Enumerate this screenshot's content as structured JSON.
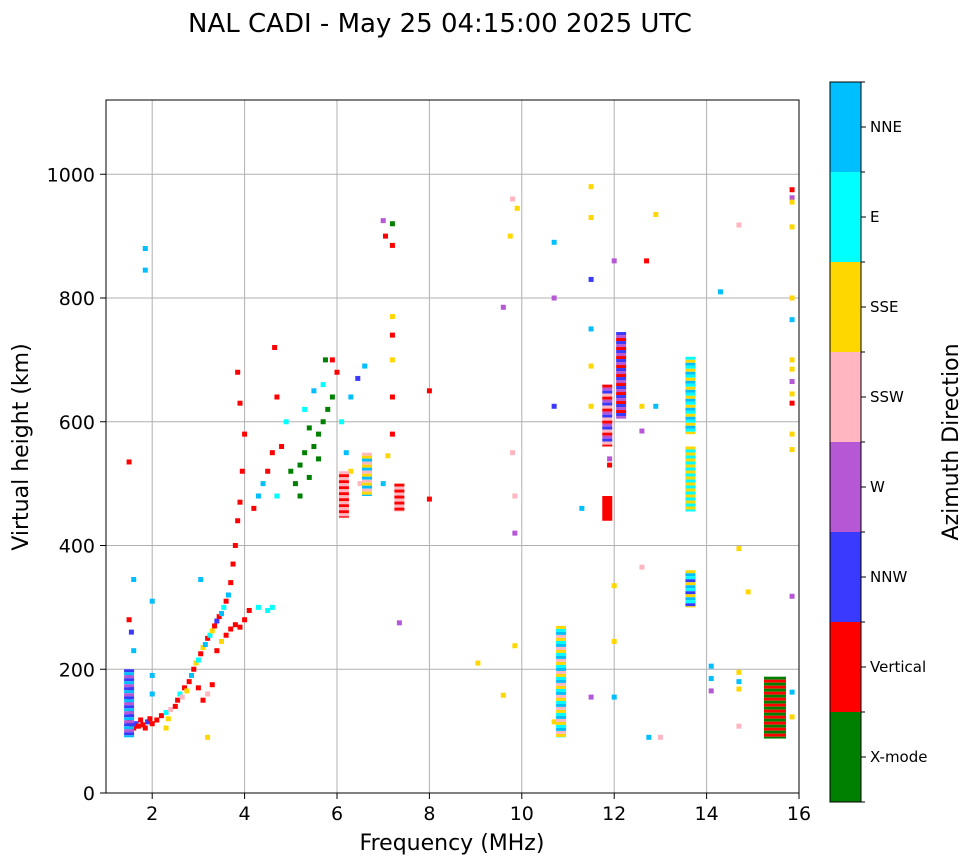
{
  "chart_data": {
    "type": "scatter",
    "title": "NAL CADI - May 25 04:15:00 2025 UTC",
    "xlabel": "Frequency (MHz)",
    "ylabel": "Virtual height (km)",
    "xlim": [
      1,
      16
    ],
    "ylim": [
      0,
      1120
    ],
    "xticks": [
      2,
      4,
      6,
      8,
      10,
      12,
      14,
      16
    ],
    "yticks": [
      0,
      200,
      400,
      600,
      800,
      1000
    ],
    "grid": true,
    "colorbar": {
      "label": "Azimuth Direction",
      "categories": [
        {
          "name": "X-mode",
          "color": "#008000"
        },
        {
          "name": "Vertical",
          "color": "#ff0000"
        },
        {
          "name": "NNW",
          "color": "#3a3aff"
        },
        {
          "name": "W",
          "color": "#b657d6"
        },
        {
          "name": "SSW",
          "color": "#ffb6c1"
        },
        {
          "name": "SSE",
          "color": "#ffd700"
        },
        {
          "name": "E",
          "color": "#00ffff"
        },
        {
          "name": "NNE",
          "color": "#00bfff"
        }
      ]
    },
    "points": [
      [
        1.5,
        115,
        "Vertical"
      ],
      [
        1.55,
        110,
        "Vertical"
      ],
      [
        1.6,
        105,
        "Vertical"
      ],
      [
        1.65,
        112,
        "NNW"
      ],
      [
        1.7,
        108,
        "Vertical"
      ],
      [
        1.75,
        118,
        "Vertical"
      ],
      [
        1.8,
        110,
        "Vertical"
      ],
      [
        1.85,
        105,
        "Vertical"
      ],
      [
        1.9,
        115,
        "NNW"
      ],
      [
        1.95,
        120,
        "Vertical"
      ],
      [
        2.0,
        112,
        "Vertical"
      ],
      [
        2.1,
        118,
        "Vertical"
      ],
      [
        2.2,
        125,
        "Vertical"
      ],
      [
        2.3,
        130,
        "E"
      ],
      [
        2.35,
        120,
        "SSE"
      ],
      [
        2.4,
        135,
        "SSW"
      ],
      [
        2.5,
        140,
        "Vertical"
      ],
      [
        2.55,
        150,
        "Vertical"
      ],
      [
        2.6,
        160,
        "E"
      ],
      [
        2.65,
        155,
        "SSW"
      ],
      [
        2.7,
        170,
        "Vertical"
      ],
      [
        2.75,
        165,
        "SSE"
      ],
      [
        2.8,
        180,
        "Vertical"
      ],
      [
        2.85,
        190,
        "NNE"
      ],
      [
        2.9,
        200,
        "Vertical"
      ],
      [
        2.95,
        210,
        "SSE"
      ],
      [
        3.0,
        215,
        "E"
      ],
      [
        3.05,
        225,
        "Vertical"
      ],
      [
        3.1,
        235,
        "SSE"
      ],
      [
        3.15,
        240,
        "NNE"
      ],
      [
        3.2,
        250,
        "Vertical"
      ],
      [
        3.25,
        255,
        "E"
      ],
      [
        3.3,
        262,
        "SSE"
      ],
      [
        3.35,
        270,
        "Vertical"
      ],
      [
        3.4,
        278,
        "NNW"
      ],
      [
        3.45,
        285,
        "Vertical"
      ],
      [
        3.5,
        290,
        "Vertical"
      ],
      [
        3.55,
        300,
        "E"
      ],
      [
        3.6,
        310,
        "Vertical"
      ],
      [
        3.65,
        320,
        "NNE"
      ],
      [
        3.7,
        340,
        "Vertical"
      ],
      [
        3.75,
        370,
        "Vertical"
      ],
      [
        3.8,
        400,
        "Vertical"
      ],
      [
        3.85,
        440,
        "Vertical"
      ],
      [
        3.9,
        470,
        "Vertical"
      ],
      [
        3.95,
        520,
        "Vertical"
      ],
      [
        4.0,
        580,
        "Vertical"
      ],
      [
        3.9,
        630,
        "Vertical"
      ],
      [
        3.85,
        680,
        "Vertical"
      ],
      [
        3.0,
        170,
        "Vertical"
      ],
      [
        3.1,
        150,
        "Vertical"
      ],
      [
        3.2,
        160,
        "SSW"
      ],
      [
        3.3,
        175,
        "Vertical"
      ],
      [
        3.4,
        230,
        "Vertical"
      ],
      [
        3.5,
        245,
        "SSE"
      ],
      [
        3.6,
        255,
        "Vertical"
      ],
      [
        3.7,
        265,
        "Vertical"
      ],
      [
        3.8,
        272,
        "Vertical"
      ],
      [
        3.9,
        268,
        "Vertical"
      ],
      [
        4.0,
        280,
        "Vertical"
      ],
      [
        4.1,
        295,
        "Vertical"
      ],
      [
        4.3,
        300,
        "E"
      ],
      [
        4.5,
        295,
        "E"
      ],
      [
        4.6,
        300,
        "E"
      ],
      [
        1.5,
        280,
        "Vertical"
      ],
      [
        1.55,
        260,
        "NNW"
      ],
      [
        1.6,
        230,
        "NNE"
      ],
      [
        1.5,
        190,
        "NNW"
      ],
      [
        1.55,
        170,
        "NNW"
      ],
      [
        1.5,
        150,
        "NNW"
      ],
      [
        1.55,
        130,
        "NNW"
      ],
      [
        1.6,
        345,
        "NNE"
      ],
      [
        1.5,
        535,
        "Vertical"
      ],
      [
        1.85,
        880,
        "NNE"
      ],
      [
        1.85,
        845,
        "NNE"
      ],
      [
        2.0,
        310,
        "NNE"
      ],
      [
        2.0,
        190,
        "NNE"
      ],
      [
        2.0,
        160,
        "NNE"
      ],
      [
        2.3,
        105,
        "SSE"
      ],
      [
        3.2,
        90,
        "SSE"
      ],
      [
        3.05,
        345,
        "NNE"
      ],
      [
        3.5,
        290,
        "NNE"
      ],
      [
        4.2,
        460,
        "Vertical"
      ],
      [
        4.3,
        480,
        "NNE"
      ],
      [
        4.4,
        500,
        "NNE"
      ],
      [
        4.5,
        520,
        "Vertical"
      ],
      [
        4.6,
        550,
        "Vertical"
      ],
      [
        4.7,
        480,
        "E"
      ],
      [
        4.8,
        560,
        "Vertical"
      ],
      [
        4.9,
        600,
        "E"
      ],
      [
        4.7,
        640,
        "Vertical"
      ],
      [
        4.65,
        720,
        "Vertical"
      ],
      [
        5.0,
        520,
        "X-mode"
      ],
      [
        5.1,
        500,
        "X-mode"
      ],
      [
        5.2,
        530,
        "X-mode"
      ],
      [
        5.3,
        550,
        "X-mode"
      ],
      [
        5.4,
        510,
        "X-mode"
      ],
      [
        5.5,
        560,
        "X-mode"
      ],
      [
        5.6,
        580,
        "X-mode"
      ],
      [
        5.7,
        600,
        "X-mode"
      ],
      [
        5.8,
        620,
        "X-mode"
      ],
      [
        5.9,
        640,
        "X-mode"
      ],
      [
        5.2,
        480,
        "X-mode"
      ],
      [
        5.4,
        590,
        "X-mode"
      ],
      [
        5.6,
        540,
        "X-mode"
      ],
      [
        5.75,
        700,
        "X-mode"
      ],
      [
        5.3,
        620,
        "E"
      ],
      [
        5.5,
        650,
        "NNE"
      ],
      [
        5.7,
        660,
        "E"
      ],
      [
        5.9,
        700,
        "Vertical"
      ],
      [
        6.0,
        680,
        "Vertical"
      ],
      [
        6.1,
        600,
        "E"
      ],
      [
        6.2,
        550,
        "NNE"
      ],
      [
        6.3,
        640,
        "NNE"
      ],
      [
        6.45,
        670,
        "NNW"
      ],
      [
        6.2,
        480,
        "SSW"
      ],
      [
        6.3,
        520,
        "SSE"
      ],
      [
        6.5,
        500,
        "SSW"
      ],
      [
        6.6,
        540,
        "E"
      ],
      [
        6.6,
        690,
        "NNE"
      ],
      [
        7.0,
        500,
        "NNE"
      ],
      [
        7.1,
        545,
        "SSE"
      ],
      [
        7.0,
        925,
        "W"
      ],
      [
        7.05,
        900,
        "Vertical"
      ],
      [
        7.2,
        920,
        "X-mode"
      ],
      [
        7.2,
        885,
        "Vertical"
      ],
      [
        7.2,
        740,
        "Vertical"
      ],
      [
        7.2,
        700,
        "SSE"
      ],
      [
        7.2,
        640,
        "Vertical"
      ],
      [
        7.2,
        580,
        "Vertical"
      ],
      [
        7.35,
        480,
        "NNW"
      ],
      [
        7.35,
        275,
        "W"
      ],
      [
        7.2,
        770,
        "SSE"
      ],
      [
        8.0,
        650,
        "Vertical"
      ],
      [
        8.0,
        475,
        "Vertical"
      ],
      [
        9.05,
        210,
        "SSE"
      ],
      [
        9.6,
        158,
        "SSE"
      ],
      [
        9.75,
        900,
        "SSE"
      ],
      [
        9.8,
        960,
        "SSW"
      ],
      [
        9.9,
        945,
        "SSE"
      ],
      [
        9.6,
        785,
        "W"
      ],
      [
        9.8,
        550,
        "SSW"
      ],
      [
        9.85,
        480,
        "SSW"
      ],
      [
        9.85,
        420,
        "W"
      ],
      [
        9.85,
        238,
        "SSE"
      ],
      [
        10.7,
        890,
        "NNE"
      ],
      [
        10.7,
        800,
        "W"
      ],
      [
        10.7,
        625,
        "NNW"
      ],
      [
        10.7,
        115,
        "SSE"
      ],
      [
        11.3,
        460,
        "NNE"
      ],
      [
        11.5,
        155,
        "W"
      ],
      [
        11.5,
        980,
        "SSE"
      ],
      [
        11.5,
        930,
        "SSE"
      ],
      [
        11.5,
        830,
        "NNW"
      ],
      [
        11.5,
        750,
        "NNE"
      ],
      [
        11.5,
        690,
        "SSE"
      ],
      [
        11.5,
        625,
        "SSE"
      ],
      [
        11.9,
        540,
        "W"
      ],
      [
        11.9,
        530,
        "Vertical"
      ],
      [
        12.0,
        860,
        "W"
      ],
      [
        12.0,
        335,
        "SSE"
      ],
      [
        12.0,
        245,
        "SSE"
      ],
      [
        12.0,
        155,
        "NNE"
      ],
      [
        12.6,
        585,
        "W"
      ],
      [
        12.6,
        625,
        "SSE"
      ],
      [
        12.9,
        625,
        "NNE"
      ],
      [
        12.9,
        935,
        "SSE"
      ],
      [
        12.75,
        90,
        "NNE"
      ],
      [
        13.0,
        90,
        "SSW"
      ],
      [
        12.6,
        365,
        "SSW"
      ],
      [
        14.3,
        810,
        "NNE"
      ],
      [
        14.7,
        918,
        "SSW"
      ],
      [
        14.7,
        395,
        "SSE"
      ],
      [
        14.9,
        325,
        "SSE"
      ],
      [
        14.1,
        205,
        "NNE"
      ],
      [
        14.1,
        185,
        "NNE"
      ],
      [
        14.1,
        165,
        "W"
      ],
      [
        14.7,
        195,
        "SSE"
      ],
      [
        14.7,
        180,
        "NNE"
      ],
      [
        14.7,
        168,
        "SSE"
      ],
      [
        14.7,
        108,
        "SSW"
      ],
      [
        15.85,
        975,
        "Vertical"
      ],
      [
        15.85,
        962,
        "W"
      ],
      [
        15.85,
        955,
        "SSE"
      ],
      [
        15.85,
        915,
        "SSE"
      ],
      [
        15.85,
        800,
        "SSE"
      ],
      [
        15.85,
        765,
        "NNE"
      ],
      [
        15.85,
        700,
        "SSE"
      ],
      [
        15.85,
        685,
        "SSE"
      ],
      [
        15.85,
        665,
        "W"
      ],
      [
        15.85,
        645,
        "SSE"
      ],
      [
        15.85,
        630,
        "Vertical"
      ],
      [
        15.85,
        580,
        "SSE"
      ],
      [
        15.85,
        555,
        "SSE"
      ],
      [
        15.85,
        318,
        "W"
      ],
      [
        15.85,
        163,
        "NNE"
      ],
      [
        15.85,
        123,
        "SSE"
      ],
      [
        12.7,
        860,
        "Vertical"
      ]
    ],
    "vertical_traces": [
      {
        "f": 10.85,
        "h1": 90,
        "h2": 270,
        "colors": [
          "SSE",
          "E",
          "NNE",
          "SSW"
        ]
      },
      {
        "f": 11.85,
        "h1": 560,
        "h2": 660,
        "colors": [
          "Vertical",
          "W",
          "NNW",
          "SSW"
        ]
      },
      {
        "f": 11.85,
        "h1": 440,
        "h2": 480,
        "colors": [
          "Vertical"
        ]
      },
      {
        "f": 12.15,
        "h1": 605,
        "h2": 745,
        "colors": [
          "NNW",
          "W",
          "Vertical"
        ]
      },
      {
        "f": 13.65,
        "h1": 580,
        "h2": 705,
        "colors": [
          "E",
          "SSE",
          "NNE"
        ]
      },
      {
        "f": 13.65,
        "h1": 455,
        "h2": 560,
        "colors": [
          "SSE",
          "E"
        ]
      },
      {
        "f": 13.65,
        "h1": 300,
        "h2": 360,
        "colors": [
          "SSE",
          "NNE",
          "E",
          "NNW"
        ]
      },
      {
        "f": 15.35,
        "h1": 88,
        "h2": 188,
        "colors": [
          "X-mode",
          "Vertical"
        ]
      },
      {
        "f": 1.5,
        "h1": 90,
        "h2": 200,
        "colors": [
          "NNW",
          "NNE",
          "W"
        ]
      },
      {
        "f": 7.35,
        "h1": 455,
        "h2": 500,
        "colors": [
          "Vertical",
          "SSW"
        ]
      },
      {
        "f": 6.15,
        "h1": 445,
        "h2": 520,
        "colors": [
          "SSW",
          "Vertical"
        ]
      },
      {
        "f": 6.65,
        "h1": 480,
        "h2": 550,
        "colors": [
          "SSW",
          "SSE",
          "NNE"
        ]
      }
    ]
  }
}
